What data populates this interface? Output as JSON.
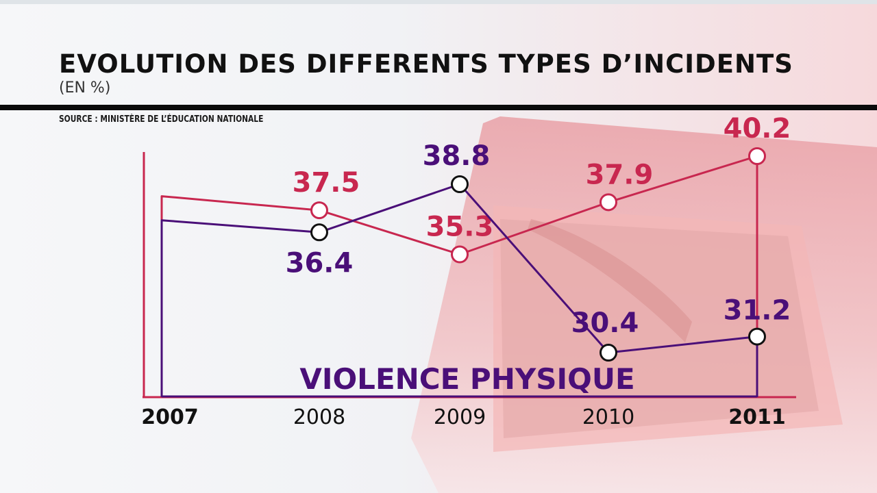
{
  "header": {
    "title": "EVOLUTION DES DIFFERENTS TYPES D’INCIDENTS",
    "unit": "(EN %)",
    "source": "SOURCE : MINISTÈRE DE L’ÉDUCATION NATIONALE"
  },
  "colors": {
    "series_red": "#c8274f",
    "series_purple": "#4a0f78",
    "text_dark": "#111111"
  },
  "chart_data": {
    "type": "line",
    "title": "EVOLUTION DES DIFFERENTS TYPES D’INCIDENTS",
    "subtitle": "(EN %)",
    "xlabel": "",
    "ylabel": "",
    "x": [
      "2007",
      "2008",
      "2009",
      "2010",
      "2011"
    ],
    "highlighted_x": [
      "2007",
      "2011"
    ],
    "ylim": [
      28,
      41
    ],
    "grid": false,
    "series": [
      {
        "name": "",
        "color": "#c8274f",
        "values": [
          38.2,
          37.5,
          35.3,
          37.9,
          40.2
        ],
        "labels": [
          "",
          "37.5",
          "35.3",
          "37.9",
          "40.2"
        ]
      },
      {
        "name": "VIOLENCE PHYSIQUE",
        "color": "#4a0f78",
        "values": [
          37.0,
          36.4,
          38.8,
          30.4,
          31.2
        ],
        "labels": [
          "",
          "36.4",
          "38.8",
          "30.4",
          "31.2"
        ]
      }
    ]
  }
}
